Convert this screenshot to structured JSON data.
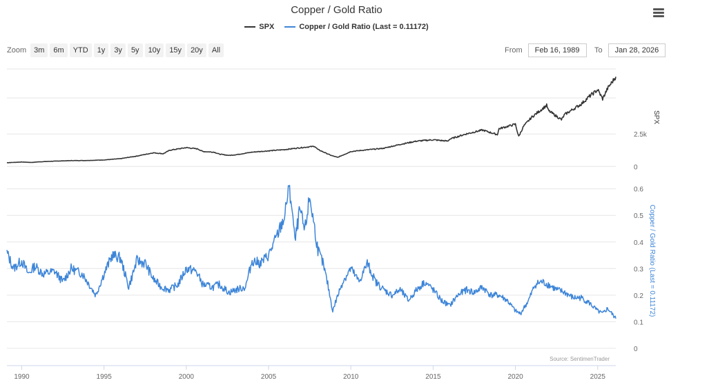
{
  "chart_data": {
    "type": "line",
    "title": "Copper / Gold Ratio",
    "series": [
      {
        "name": "SPX",
        "color": "#333333",
        "axis": "top",
        "x": [
          1989.1,
          1990,
          1990.6,
          1991,
          1992,
          1993,
          1994,
          1995,
          1996,
          1997,
          1998,
          1998.6,
          1999,
          2000,
          2000.7,
          2001,
          2001.7,
          2002,
          2002.6,
          2003,
          2004,
          2005,
          2006,
          2007,
          2007.8,
          2008,
          2008.8,
          2009.2,
          2010,
          2011,
          2012,
          2013,
          2014,
          2015,
          2015.9,
          2016,
          2017,
          2018,
          2018.9,
          2019,
          2020,
          2020.2,
          2020.5,
          2021,
          2021.9,
          2022,
          2022.8,
          2023,
          2024,
          2024.5,
          2025,
          2025.3,
          2025.6,
          2026.1
        ],
        "values": [
          290,
          340,
          310,
          350,
          410,
          450,
          460,
          500,
          600,
          800,
          1050,
          980,
          1250,
          1450,
          1350,
          1150,
          1100,
          950,
          850,
          900,
          1100,
          1200,
          1300,
          1450,
          1550,
          1300,
          850,
          700,
          1150,
          1280,
          1400,
          1700,
          1950,
          2050,
          1950,
          2100,
          2500,
          2800,
          2450,
          2900,
          3250,
          2300,
          3100,
          3800,
          4700,
          4300,
          3600,
          4000,
          4800,
          5400,
          5900,
          5200,
          6000,
          6900
        ]
      },
      {
        "name": "Copper / Gold Ratio (Last = 0.11172)",
        "color": "#3d85d8",
        "axis": "bottom",
        "x": [
          1989.1,
          1989.5,
          1990,
          1990.4,
          1990.8,
          1991.3,
          1992,
          1992.5,
          1993,
          1993.7,
          1994,
          1994.5,
          1995,
          1995.5,
          1996,
          1996.5,
          1997,
          1997.5,
          1998,
          1998.5,
          1999,
          1999.5,
          2000,
          2000.6,
          2001,
          2001.6,
          2002,
          2002.6,
          2003,
          2003.6,
          2004,
          2004.5,
          2005,
          2005.5,
          2006,
          2006.2,
          2006.4,
          2006.6,
          2006.9,
          2007.2,
          2007.5,
          2007.8,
          2008,
          2008.3,
          2008.6,
          2008.9,
          2009.1,
          2009.5,
          2010,
          2010.5,
          2011,
          2011.5,
          2012,
          2012.5,
          2013,
          2013.5,
          2014,
          2014.5,
          2015,
          2015.5,
          2016,
          2016.5,
          2017,
          2017.5,
          2018,
          2018.5,
          2019,
          2019.5,
          2020,
          2020.3,
          2020.8,
          2021.2,
          2021.6,
          2022,
          2022.5,
          2023,
          2023.5,
          2024,
          2024.5,
          2025,
          2025.3,
          2025.6,
          2026.1
        ],
        "values": [
          0.36,
          0.3,
          0.33,
          0.28,
          0.31,
          0.28,
          0.29,
          0.25,
          0.3,
          0.28,
          0.25,
          0.2,
          0.28,
          0.35,
          0.34,
          0.23,
          0.33,
          0.32,
          0.26,
          0.23,
          0.22,
          0.24,
          0.3,
          0.29,
          0.24,
          0.23,
          0.24,
          0.21,
          0.22,
          0.23,
          0.33,
          0.32,
          0.35,
          0.42,
          0.5,
          0.6,
          0.55,
          0.4,
          0.52,
          0.44,
          0.57,
          0.45,
          0.37,
          0.32,
          0.24,
          0.14,
          0.18,
          0.25,
          0.3,
          0.25,
          0.32,
          0.25,
          0.22,
          0.2,
          0.22,
          0.18,
          0.22,
          0.25,
          0.22,
          0.18,
          0.16,
          0.2,
          0.22,
          0.21,
          0.23,
          0.2,
          0.2,
          0.18,
          0.14,
          0.13,
          0.18,
          0.24,
          0.25,
          0.24,
          0.22,
          0.21,
          0.19,
          0.19,
          0.17,
          0.14,
          0.13,
          0.15,
          0.11172
        ]
      }
    ],
    "top_axis": {
      "title": "SPX",
      "ticks": [
        0,
        2500
      ],
      "tick_labels": [
        "0",
        "2.5k"
      ],
      "ylim": [
        -250,
        7500
      ]
    },
    "bottom_axis": {
      "title": "Copper / Gold Ratio (Last = 0.11172)",
      "ticks": [
        0,
        0.1,
        0.2,
        0.3,
        0.4,
        0.5,
        0.6
      ],
      "tick_labels": [
        "0",
        "0.1",
        "0.2",
        "0.3",
        "0.4",
        "0.5",
        "0.6"
      ],
      "ylim": [
        -0.06,
        0.62
      ]
    },
    "x_axis": {
      "ticks": [
        1990,
        1995,
        2000,
        2005,
        2010,
        2015,
        2020,
        2025
      ],
      "tick_labels": [
        "1990",
        "1995",
        "2000",
        "2005",
        "2010",
        "2015",
        "2020",
        "2025"
      ],
      "xlim": [
        1989.1,
        2026.1
      ]
    },
    "credits": "Source: SentimenTrader"
  },
  "legend": {
    "spx": "SPX",
    "ratio": "Copper / Gold Ratio (Last = 0.11172)",
    "spx_color": "#333333",
    "ratio_color": "#3d85d8"
  },
  "toolbar": {
    "zoom_label": "Zoom",
    "zoom_buttons": [
      "3m",
      "6m",
      "YTD",
      "1y",
      "3y",
      "5y",
      "10y",
      "15y",
      "20y",
      "All"
    ],
    "from_label": "From",
    "from_value": "Feb 16, 1989",
    "to_label": "To",
    "to_value": "Jan 28, 2026",
    "menu_icon": "hamburger-menu-icon"
  }
}
